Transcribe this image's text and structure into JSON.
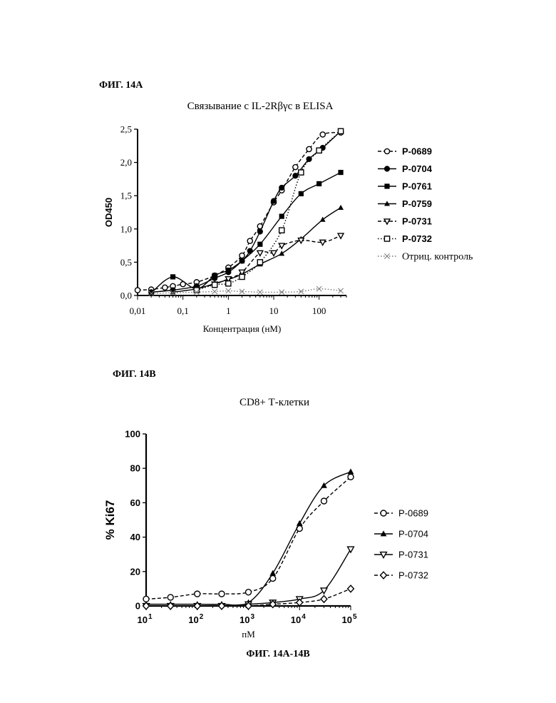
{
  "captions": {
    "fig_a": "ФИГ. 14А",
    "fig_b": "ФИГ. 14В",
    "footer": "ФИГ. 14А-14В"
  },
  "chart_data": [
    {
      "type": "scatter",
      "title": "Связывание с IL-2Rβγc в ELISA",
      "xlabel": "Концентрация (нМ)",
      "ylabel": "OD450",
      "x_scale": "log",
      "xlim": [
        0.01,
        400
      ],
      "ylim": [
        0,
        2.5
      ],
      "x_tick_values": [
        0.01,
        0.1,
        1,
        10,
        100
      ],
      "x_tick_labels": [
        "0,01",
        "0,1",
        "1",
        "10",
        "100"
      ],
      "y_tick_values": [
        0,
        0.5,
        1.0,
        1.5,
        2.0,
        2.5
      ],
      "y_tick_labels": [
        "0,0",
        "0,5",
        "1,0",
        "1,5",
        "2,0",
        "2,5"
      ],
      "legend_position": "right",
      "series": [
        {
          "name": "P-0689",
          "marker": "circle-open",
          "line": "dashed",
          "color": "#000000",
          "x": [
            0.01,
            0.02,
            0.04,
            0.06,
            0.1,
            0.2,
            0.5,
            1,
            2,
            3,
            5,
            10,
            15,
            30,
            60,
            120,
            300
          ],
          "y": [
            0.08,
            0.09,
            0.12,
            0.14,
            0.17,
            0.2,
            0.3,
            0.42,
            0.6,
            0.82,
            1.04,
            1.4,
            1.58,
            1.93,
            2.2,
            2.42,
            2.45
          ]
        },
        {
          "name": "P-0704",
          "marker": "circle-filled",
          "line": "solid",
          "color": "#000000",
          "x": [
            0.02,
            0.06,
            0.2,
            0.5,
            1,
            2,
            3,
            5,
            10,
            15,
            30,
            60,
            120,
            300
          ],
          "y": [
            0.05,
            0.08,
            0.14,
            0.26,
            0.35,
            0.52,
            0.67,
            0.96,
            1.42,
            1.62,
            1.8,
            2.05,
            2.22,
            2.47
          ]
        },
        {
          "name": "P-0761",
          "marker": "square-filled",
          "line": "solid",
          "color": "#000000",
          "x": [
            0.02,
            0.06,
            0.2,
            0.5,
            1,
            2,
            5,
            15,
            40,
            100,
            300
          ],
          "y": [
            0.04,
            0.28,
            0.1,
            0.3,
            0.38,
            0.52,
            0.77,
            1.19,
            1.53,
            1.68,
            1.85
          ]
        },
        {
          "name": "P-0759",
          "marker": "triangle-filled",
          "line": "solid",
          "color": "#000000",
          "x": [
            0.06,
            0.2,
            0.5,
            1,
            2,
            5,
            15,
            40,
            120,
            300
          ],
          "y": [
            0.05,
            0.1,
            0.18,
            0.24,
            0.32,
            0.47,
            0.63,
            0.85,
            1.14,
            1.32
          ]
        },
        {
          "name": "P-0731",
          "marker": "triangle-down-open",
          "line": "dashed",
          "color": "#000000",
          "x": [
            0.2,
            0.5,
            1,
            2,
            5,
            10,
            15,
            40,
            120,
            300
          ],
          "y": [
            0.1,
            0.17,
            0.25,
            0.35,
            0.64,
            0.64,
            0.75,
            0.83,
            0.8,
            0.9
          ]
        },
        {
          "name": "P-0732",
          "marker": "square-open",
          "line": "dotted",
          "color": "#000000",
          "x": [
            0.2,
            0.5,
            1,
            2,
            5,
            15,
            40,
            100,
            300
          ],
          "y": [
            0.08,
            0.16,
            0.18,
            0.28,
            0.5,
            0.98,
            1.85,
            2.18,
            2.47
          ]
        },
        {
          "name": "Отриц. контроль",
          "marker": "x",
          "line": "dotted",
          "color": "#777777",
          "x": [
            0.02,
            0.06,
            0.2,
            0.5,
            1,
            2,
            5,
            15,
            40,
            100,
            300
          ],
          "y": [
            0.03,
            0.04,
            0.05,
            0.06,
            0.07,
            0.06,
            0.05,
            0.05,
            0.06,
            0.1,
            0.07
          ]
        }
      ]
    },
    {
      "type": "scatter",
      "title": "CD8+ Т-клетки",
      "xlabel": "пМ",
      "ylabel": "% Ki67",
      "x_scale": "log",
      "xlim": [
        10,
        100000
      ],
      "ylim": [
        0,
        100
      ],
      "x_tick_values": [
        10,
        100,
        1000,
        10000,
        100000
      ],
      "x_tick_labels": [
        "10",
        "10",
        "10",
        "10",
        "10"
      ],
      "x_tick_exponents": [
        "1",
        "2",
        "3",
        "4",
        "5"
      ],
      "y_tick_values": [
        0,
        20,
        40,
        60,
        80,
        100
      ],
      "y_tick_labels": [
        "0",
        "20",
        "40",
        "60",
        "80",
        "100"
      ],
      "legend_position": "right",
      "series": [
        {
          "name": "P-0689",
          "marker": "circle-open",
          "line": "dashed",
          "color": "#000000",
          "x": [
            10,
            30,
            100,
            300,
            1000,
            3000,
            10000,
            30000,
            100000
          ],
          "y": [
            4,
            5,
            7,
            7,
            8,
            16,
            45,
            61,
            75
          ]
        },
        {
          "name": "P-0704",
          "marker": "triangle-filled",
          "line": "solid",
          "color": "#000000",
          "x": [
            10,
            30,
            100,
            300,
            1000,
            3000,
            10000,
            30000,
            100000
          ],
          "y": [
            1,
            1,
            1,
            1,
            2,
            19,
            48,
            70,
            78
          ]
        },
        {
          "name": "P-0731",
          "marker": "triangle-down-open",
          "line": "solid",
          "color": "#000000",
          "x": [
            10,
            30,
            100,
            300,
            1000,
            3000,
            10000,
            30000,
            100000
          ],
          "y": [
            0,
            0,
            0,
            0,
            1,
            2,
            4,
            9,
            33
          ]
        },
        {
          "name": "P-0732",
          "marker": "diamond-open",
          "line": "dashed",
          "color": "#000000",
          "x": [
            10,
            30,
            100,
            300,
            1000,
            3000,
            10000,
            30000,
            100000
          ],
          "y": [
            0,
            0,
            0,
            0,
            0,
            1,
            2,
            4,
            10
          ]
        }
      ]
    }
  ]
}
